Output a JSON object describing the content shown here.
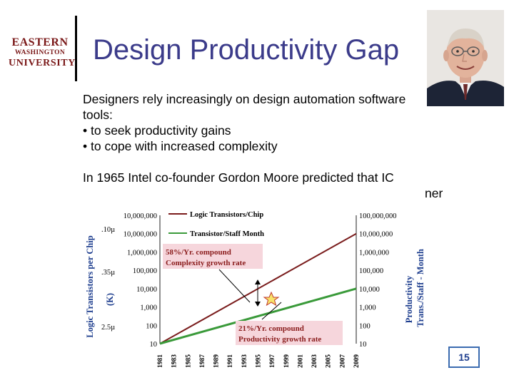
{
  "logo": {
    "line1": "EASTERN",
    "line2": "WASHINGTON",
    "line3": "UNIVERSITY"
  },
  "title": "Design Productivity Gap",
  "body": {
    "para1_line1": "Designers rely increasingly on design automation software",
    "para1_line2": "tools:",
    "bullet1": "•  to seek productivity gains",
    "bullet2": "•  to cope with increased complexity",
    "para2_line1": "In 1965 Intel co-founder Gordon Moore predicted that IC",
    "para2_line2_fragment": "ner"
  },
  "page_number": "15",
  "colors": {
    "title": "#3b3b8a",
    "logic_line": "#7a1c1c",
    "productivity_line": "#3a9a3a",
    "callout_bg": "#f6d6dc",
    "page_border": "#3a6bb0"
  },
  "chart_data": {
    "type": "line",
    "x": [
      1981,
      1983,
      1985,
      1987,
      1989,
      1991,
      1993,
      1995,
      1997,
      1999,
      2001,
      2003,
      2005,
      2007,
      2009
    ],
    "x_tick_labels": [
      "1981",
      "1983",
      "1985",
      "1987",
      "1989",
      "1991",
      "1993",
      "1995",
      "1997",
      "1999",
      "2001",
      "2003",
      "2005",
      "2007",
      "2009"
    ],
    "y_left_ticks": [
      "10",
      "100",
      "1,000",
      "10,000",
      "100,000",
      "1,000,000",
      "10,000,000"
    ],
    "y_left_label": "Logic Transistors per Chip (K)",
    "y_left_node_labels": [
      "2.5µ",
      ".35µ",
      ".10µ"
    ],
    "y_right_ticks": [
      "10",
      "100",
      "1,000",
      "10,000",
      "100,000",
      "1,000,000",
      "10,000,000",
      "100,000,000"
    ],
    "y_right_label": "Productivity Trans./Staff - Month",
    "scale": "log",
    "series": [
      {
        "name": "Logic Transistors/Chip",
        "axis": "left",
        "x": [
          1981,
          2009
        ],
        "y": [
          10,
          10000000
        ]
      },
      {
        "name": "Transistor/Staff Month",
        "axis": "right",
        "x": [
          1981,
          2009
        ],
        "y": [
          10,
          10000
        ]
      }
    ],
    "annotations": [
      {
        "line1": "58%/Yr. compound",
        "line2": "Complexity growth rate"
      },
      {
        "line1": "21%/Yr. compound",
        "line2": "Productivity growth rate"
      }
    ]
  }
}
